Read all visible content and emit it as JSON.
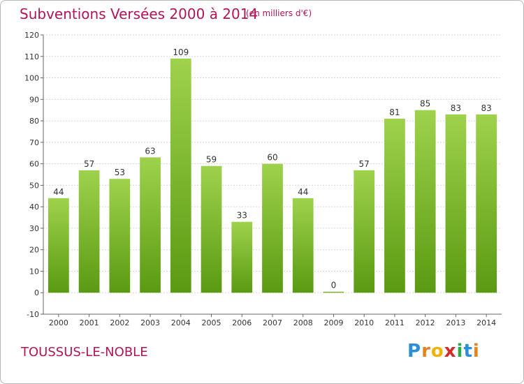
{
  "header": {
    "title": "Subventions Versées 2000 à 2014",
    "subtitle": "(en milliers d'€)"
  },
  "footer": {
    "commune": "TOUSSUS-LE-NOBLE",
    "logo_letters": [
      "P",
      "r",
      "o",
      "x",
      "i",
      "t",
      "i"
    ],
    "logo_colors": [
      "#2a8fd6",
      "#e8821e",
      "#f0b400",
      "#d42a2a",
      "#2aa84a",
      "#2a8fd6",
      "#e8821e"
    ]
  },
  "chart_data": {
    "type": "bar",
    "title": "Subventions Versées 2000 à 2014",
    "subtitle": "(en milliers d'€)",
    "xlabel": "",
    "ylabel": "",
    "categories": [
      "2000",
      "2001",
      "2002",
      "2003",
      "2004",
      "2005",
      "2006",
      "2007",
      "2008",
      "2009",
      "2010",
      "2011",
      "2012",
      "2013",
      "2014"
    ],
    "values": [
      44,
      57,
      53,
      63,
      109,
      59,
      33,
      60,
      44,
      0,
      57,
      81,
      85,
      83,
      83
    ],
    "ylim": [
      -10,
      120
    ],
    "yticks": [
      -10,
      0,
      10,
      20,
      30,
      40,
      50,
      60,
      70,
      80,
      90,
      100,
      110,
      120
    ],
    "grid": true,
    "legend": "none",
    "bar_color_light": "#9fd24c",
    "bar_color_dark": "#5a9a12"
  }
}
